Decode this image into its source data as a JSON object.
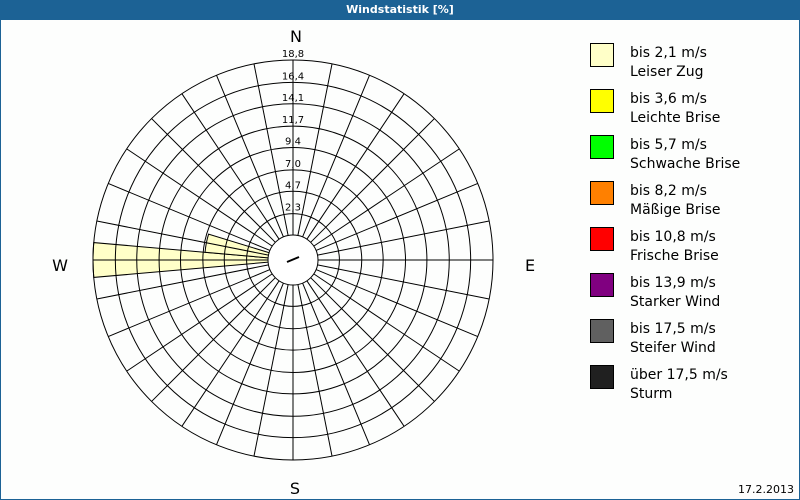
{
  "title": "Windstatistik [%]",
  "date": "17.2.2013",
  "chart_data": {
    "type": "wind-rose",
    "title": "Windstatistik [%]",
    "compass": {
      "N": "N",
      "E": "E",
      "S": "S",
      "W": "W"
    },
    "ring_labels": [
      "2,3",
      "4,7",
      "7,0",
      "9,4",
      "11,7",
      "14,1",
      "16,4",
      "18,8"
    ],
    "ring_values": [
      2.3,
      4.7,
      7.0,
      9.4,
      11.7,
      14.1,
      16.4,
      18.8
    ],
    "rmax": 18.8,
    "grid": true,
    "legend_position": "right",
    "sectors": [
      {
        "direction_deg": 270,
        "width_deg": 10,
        "class": 0,
        "value": 18.8
      },
      {
        "direction_deg": 281,
        "width_deg": 12,
        "class": 0,
        "value": 6.8
      }
    ],
    "legend": [
      {
        "range": "bis 2,1 m/s",
        "name": "Leiser Zug",
        "color": "#ffffc8"
      },
      {
        "range": "bis 3,6 m/s",
        "name": "Leichte Brise",
        "color": "#ffff00"
      },
      {
        "range": "bis 5,7 m/s",
        "name": "Schwache Brise",
        "color": "#00ff00"
      },
      {
        "range": "bis 8,2 m/s",
        "name": "Mäßige Brise",
        "color": "#ff8000"
      },
      {
        "range": "bis 10,8 m/s",
        "name": "Frische Brise",
        "color": "#ff0000"
      },
      {
        "range": "bis 13,9 m/s",
        "name": "Starker Wind",
        "color": "#800080"
      },
      {
        "range": "bis 17,5 m/s",
        "name": "Steifer Wind",
        "color": "#606060"
      },
      {
        "range": "über 17,5 m/s",
        "name": "Sturm",
        "color": "#202020"
      }
    ]
  }
}
